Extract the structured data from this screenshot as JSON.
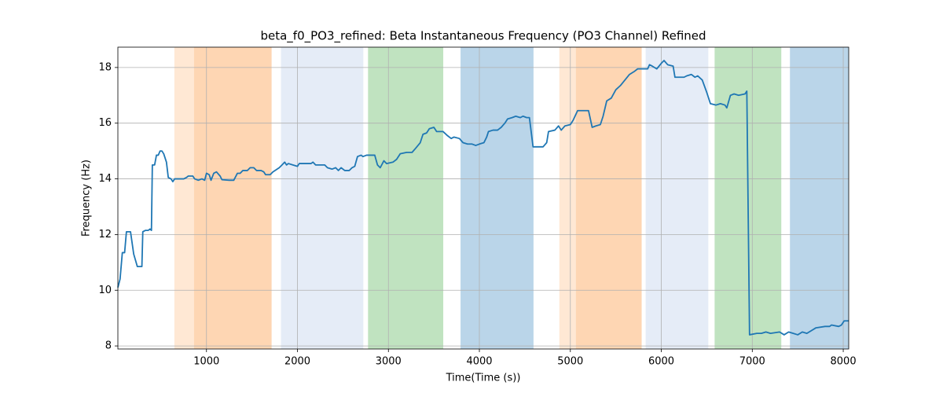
{
  "chart_data": {
    "type": "line",
    "title": "beta_f0_PO3_refined: Beta Instantaneous Frequency (PO3 Channel) Refined",
    "xlabel": "Time(Time (s))",
    "ylabel": "Frequency (Hz)",
    "color": "#1f77b4",
    "x": [
      26,
      50,
      75,
      100,
      120,
      165,
      200,
      240,
      290,
      300,
      330,
      360,
      380,
      395,
      405,
      430,
      450,
      470,
      490,
      510,
      530,
      560,
      580,
      610,
      630,
      650,
      700,
      750,
      780,
      800,
      850,
      870,
      910,
      950,
      980,
      1000,
      1030,
      1050,
      1080,
      1110,
      1150,
      1170,
      1250,
      1300,
      1340,
      1370,
      1400,
      1450,
      1480,
      1520,
      1550,
      1600,
      1630,
      1650,
      1700,
      1730,
      1800,
      1830,
      1860,
      1880,
      1900,
      1950,
      2000,
      2020,
      2100,
      2150,
      2170,
      2200,
      2300,
      2330,
      2380,
      2420,
      2450,
      2480,
      2520,
      2570,
      2600,
      2630,
      2660,
      2700,
      2720,
      2760,
      2800,
      2850,
      2880,
      2910,
      2950,
      2980,
      3050,
      3090,
      3130,
      3200,
      3260,
      3300,
      3350,
      3380,
      3420,
      3450,
      3500,
      3530,
      3600,
      3650,
      3690,
      3720,
      3780,
      3820,
      3870,
      3920,
      3960,
      4000,
      4050,
      4080,
      4100,
      4150,
      4200,
      4240,
      4280,
      4310,
      4360,
      4400,
      4450,
      4480,
      4520,
      4550,
      4590,
      4700,
      4740,
      4760,
      4830,
      4870,
      4900,
      4940,
      5000,
      5030,
      5080,
      5200,
      5240,
      5280,
      5330,
      5360,
      5400,
      5450,
      5500,
      5550,
      5600,
      5650,
      5700,
      5740,
      5850,
      5870,
      5900,
      5950,
      6000,
      6030,
      6070,
      6130,
      6150,
      6250,
      6280,
      6330,
      6370,
      6400,
      6450,
      6500,
      6540,
      6600,
      6650,
      6700,
      6720,
      6760,
      6800,
      6850,
      6920,
      6940,
      6970,
      7050,
      7100,
      7150,
      7200,
      7300,
      7350,
      7400,
      7450,
      7500,
      7550,
      7600,
      7650,
      7700,
      7800,
      7850,
      7870,
      7950,
      7980,
      8010,
      8060
    ],
    "values": [
      10.1,
      10.4,
      11.35,
      11.35,
      12.1,
      12.1,
      11.3,
      10.85,
      10.85,
      12.1,
      12.15,
      12.15,
      12.2,
      12.15,
      14.5,
      14.5,
      14.85,
      14.85,
      15.0,
      15.0,
      14.9,
      14.6,
      14.05,
      14.0,
      13.9,
      14.0,
      14.0,
      14.0,
      14.05,
      14.1,
      14.1,
      14.0,
      13.95,
      14.0,
      13.95,
      14.2,
      14.15,
      13.95,
      14.2,
      14.25,
      14.1,
      13.97,
      13.95,
      13.95,
      14.2,
      14.2,
      14.3,
      14.3,
      14.4,
      14.4,
      14.3,
      14.3,
      14.25,
      14.15,
      14.15,
      14.25,
      14.4,
      14.5,
      14.6,
      14.5,
      14.55,
      14.5,
      14.45,
      14.55,
      14.55,
      14.55,
      14.6,
      14.5,
      14.5,
      14.4,
      14.35,
      14.4,
      14.3,
      14.4,
      14.3,
      14.3,
      14.4,
      14.45,
      14.8,
      14.85,
      14.8,
      14.85,
      14.85,
      14.85,
      14.5,
      14.4,
      14.65,
      14.55,
      14.6,
      14.7,
      14.9,
      14.95,
      14.95,
      15.1,
      15.3,
      15.6,
      15.65,
      15.8,
      15.85,
      15.7,
      15.7,
      15.55,
      15.45,
      15.5,
      15.45,
      15.3,
      15.25,
      15.25,
      15.2,
      15.25,
      15.3,
      15.5,
      15.7,
      15.75,
      15.75,
      15.85,
      16.0,
      16.15,
      16.2,
      16.25,
      16.2,
      16.25,
      16.2,
      16.2,
      15.15,
      15.15,
      15.3,
      15.7,
      15.75,
      15.9,
      15.75,
      15.9,
      15.95,
      16.1,
      16.45,
      16.45,
      15.85,
      15.9,
      15.95,
      16.25,
      16.8,
      16.9,
      17.2,
      17.35,
      17.55,
      17.75,
      17.85,
      17.95,
      17.95,
      18.1,
      18.05,
      17.95,
      18.15,
      18.25,
      18.1,
      18.05,
      17.65,
      17.65,
      17.7,
      17.75,
      17.65,
      17.7,
      17.55,
      17.1,
      16.7,
      16.65,
      16.7,
      16.65,
      16.55,
      17.0,
      17.05,
      17.0,
      17.05,
      17.15,
      8.4,
      8.45,
      8.45,
      8.5,
      8.45,
      8.5,
      8.4,
      8.5,
      8.45,
      8.4,
      8.5,
      8.45,
      8.55,
      8.65,
      8.7,
      8.7,
      8.75,
      8.7,
      8.75,
      8.9,
      8.9
    ],
    "spans": [
      {
        "x0": 647,
        "x1": 862,
        "color": "#ffe8d4"
      },
      {
        "x0": 862,
        "x1": 1716,
        "color": "#fed6b3"
      },
      {
        "x0": 1819,
        "x1": 2724,
        "color": "#e5ecf7"
      },
      {
        "x0": 2776,
        "x1": 3603,
        "color": "#c0e3c0"
      },
      {
        "x0": 3793,
        "x1": 4595,
        "color": "#bad5e9"
      },
      {
        "x0": 4879,
        "x1": 5060,
        "color": "#ffe8d4"
      },
      {
        "x0": 5060,
        "x1": 5784,
        "color": "#fed6b3"
      },
      {
        "x0": 5828,
        "x1": 6517,
        "color": "#e5ecf7"
      },
      {
        "x0": 6586,
        "x1": 7319,
        "color": "#c0e3c0"
      },
      {
        "x0": 7414,
        "x1": 8060,
        "color": "#bad5e9"
      }
    ],
    "xlim": [
      26,
      8060
    ],
    "ylim": [
      7.89,
      18.73
    ],
    "xticks": [
      1000,
      2000,
      3000,
      4000,
      5000,
      6000,
      7000,
      8000
    ],
    "yticks": [
      8,
      10,
      12,
      14,
      16,
      18
    ],
    "grid": true
  }
}
